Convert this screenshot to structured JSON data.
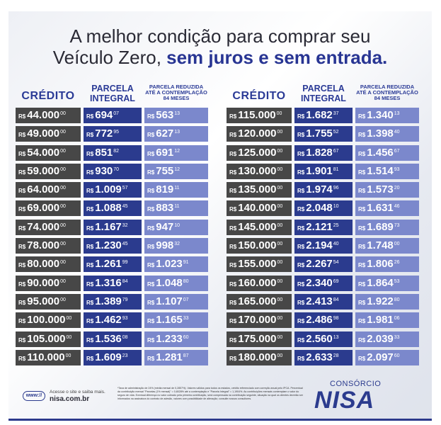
{
  "headline": {
    "line1": "A melhor condição para comprar seu",
    "line2_plain": "Veículo Zero, ",
    "line2_strong": "sem juros e sem entrada."
  },
  "headers": {
    "credito": "CRÉDITO",
    "parcela_integral": "PARCELA INTEGRAL",
    "parcela_reduzida": "PARCELA REDUZIDA ATÉ A CONTEMPLAÇÃO 84 MESES"
  },
  "currency": "R$",
  "left_rows": [
    {
      "credito": "44.000",
      "credito_cts": "00",
      "integral": "694",
      "integral_cts": "07",
      "reduzida": "563",
      "reduzida_cts": "13"
    },
    {
      "credito": "49.000",
      "credito_cts": "00",
      "integral": "772",
      "integral_cts": "95",
      "reduzida": "627",
      "reduzida_cts": "13"
    },
    {
      "credito": "54.000",
      "credito_cts": "00",
      "integral": "851",
      "integral_cts": "82",
      "reduzida": "691",
      "reduzida_cts": "12"
    },
    {
      "credito": "59.000",
      "credito_cts": "00",
      "integral": "930",
      "integral_cts": "70",
      "reduzida": "755",
      "reduzida_cts": "12"
    },
    {
      "credito": "64.000",
      "credito_cts": "00",
      "integral": "1.009",
      "integral_cts": "57",
      "reduzida": "819",
      "reduzida_cts": "11"
    },
    {
      "credito": "69.000",
      "credito_cts": "00",
      "integral": "1.088",
      "integral_cts": "45",
      "reduzida": "883",
      "reduzida_cts": "11"
    },
    {
      "credito": "74.000",
      "credito_cts": "00",
      "integral": "1.167",
      "integral_cts": "32",
      "reduzida": "947",
      "reduzida_cts": "10"
    },
    {
      "credito": "78.000",
      "credito_cts": "00",
      "integral": "1.230",
      "integral_cts": "45",
      "reduzida": "998",
      "reduzida_cts": "32"
    },
    {
      "credito": "80.000",
      "credito_cts": "00",
      "integral": "1.261",
      "integral_cts": "99",
      "reduzida": "1.023",
      "reduzida_cts": "91"
    },
    {
      "credito": "90.000",
      "credito_cts": "00",
      "integral": "1.316",
      "integral_cts": "84",
      "reduzida": "1.048",
      "reduzida_cts": "80"
    },
    {
      "credito": "95.000",
      "credito_cts": "00",
      "integral": "1.389",
      "integral_cts": "79",
      "reduzida": "1.107",
      "reduzida_cts": "07"
    },
    {
      "credito": "100.000",
      "credito_cts": "00",
      "integral": "1.462",
      "integral_cts": "93",
      "reduzida": "1.165",
      "reduzida_cts": "33"
    },
    {
      "credito": "105.000",
      "credito_cts": "00",
      "integral": "1.536",
      "integral_cts": "08",
      "reduzida": "1.233",
      "reduzida_cts": "60"
    },
    {
      "credito": "110.000",
      "credito_cts": "00",
      "integral": "1.609",
      "integral_cts": "23",
      "reduzida": "1.281",
      "reduzida_cts": "87"
    }
  ],
  "right_rows": [
    {
      "credito": "115.000",
      "credito_cts": "00",
      "integral": "1.682",
      "integral_cts": "37",
      "reduzida": "1.340",
      "reduzida_cts": "13"
    },
    {
      "credito": "120.000",
      "credito_cts": "00",
      "integral": "1.755",
      "integral_cts": "52",
      "reduzida": "1.398",
      "reduzida_cts": "40"
    },
    {
      "credito": "125.000",
      "credito_cts": "00",
      "integral": "1.828",
      "integral_cts": "67",
      "reduzida": "1.456",
      "reduzida_cts": "67"
    },
    {
      "credito": "130.000",
      "credito_cts": "00",
      "integral": "1.901",
      "integral_cts": "81",
      "reduzida": "1.514",
      "reduzida_cts": "93"
    },
    {
      "credito": "135.000",
      "credito_cts": "00",
      "integral": "1.974",
      "integral_cts": "96",
      "reduzida": "1.573",
      "reduzida_cts": "20"
    },
    {
      "credito": "140.000",
      "credito_cts": "00",
      "integral": "2.048",
      "integral_cts": "10",
      "reduzida": "1.631",
      "reduzida_cts": "46"
    },
    {
      "credito": "145.000",
      "credito_cts": "00",
      "integral": "2.121",
      "integral_cts": "25",
      "reduzida": "1.689",
      "reduzida_cts": "73"
    },
    {
      "credito": "150.000",
      "credito_cts": "00",
      "integral": "2.194",
      "integral_cts": "40",
      "reduzida": "1.748",
      "reduzida_cts": "00"
    },
    {
      "credito": "155.000",
      "credito_cts": "00",
      "integral": "2.267",
      "integral_cts": "54",
      "reduzida": "1.806",
      "reduzida_cts": "26"
    },
    {
      "credito": "160.000",
      "credito_cts": "00",
      "integral": "2.340",
      "integral_cts": "69",
      "reduzida": "1.864",
      "reduzida_cts": "53"
    },
    {
      "credito": "165.000",
      "credito_cts": "00",
      "integral": "2.413",
      "integral_cts": "84",
      "reduzida": "1.922",
      "reduzida_cts": "80"
    },
    {
      "credito": "170.000",
      "credito_cts": "00",
      "integral": "2.486",
      "integral_cts": "98",
      "reduzida": "1.981",
      "reduzida_cts": "06"
    },
    {
      "credito": "175.000",
      "credito_cts": "00",
      "integral": "2.560",
      "integral_cts": "13",
      "reduzida": "2.039",
      "reduzida_cts": "33"
    },
    {
      "credito": "180.000",
      "credito_cts": "00",
      "integral": "2.633",
      "integral_cts": "28",
      "reduzida": "2.097",
      "reduzida_cts": "60"
    }
  ],
  "footer": {
    "web_badge": "www://",
    "visit_text": "Acesse o site e saiba mais.",
    "site": "nisa.com.br",
    "disclaimer": "*Taxa de administração de 24% (média mensal de 0,2857%). Valores válidos para todos os estados, crédito referenciado com correção anual pelo IPCA. Percentual da contribuição mensal \"Parcelas (1% mensal)\" = 0,8028% até a contemplação e \"Parcela Integral\" = 1,1904%. As contribuições mensais contemplam o valor do seguro de vida. Eventual diferença no valor cobrado pela primeira contribuição, será compensada na contribuição seguinte, situação na qual os clientes deverão ser informados na assinatura do contrato de adesão, valores com possibilidade de alteração; consulte nossos consultores.",
    "brand_sub": "CONSÓRCIO",
    "brand": "NISA"
  },
  "colors": {
    "credito_bg": "#474747",
    "integral_bg": "#2b3b8e",
    "reduzida_bg": "#7b88cc",
    "accent": "#283593"
  }
}
